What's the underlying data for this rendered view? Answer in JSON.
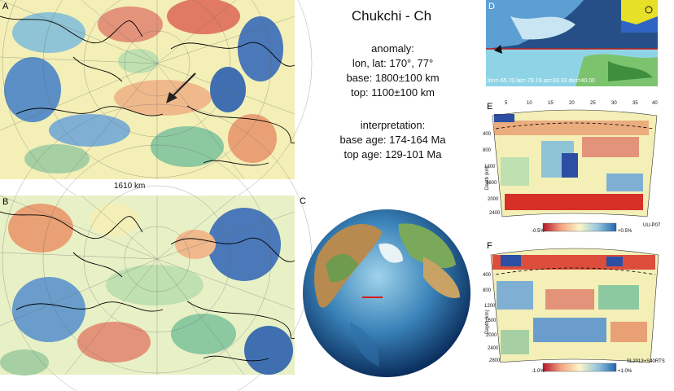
{
  "title": "Chukchi - Ch",
  "anomaly": {
    "heading": "anomaly:",
    "lonlat": "lon, lat: 170°, 77°",
    "base": "base: 1800±100 km",
    "top": "top: 1100±100 km"
  },
  "interpretation": {
    "heading": "interpretation:",
    "base_age": "base age: 174-164 Ma",
    "top_age": "top age: 129-101 Ma"
  },
  "panels": {
    "a": {
      "label": "A",
      "depth": "1610 km"
    },
    "b": {
      "label": "B"
    },
    "c": {
      "label": "C"
    },
    "d": {
      "label": "D",
      "coords": "lon=-55.70 lat=-79.19 az=33.33 dist=40.00"
    },
    "e": {
      "label": "E",
      "top_ticks": [
        "5",
        "10",
        "15",
        "20",
        "25",
        "30",
        "35",
        "40"
      ],
      "depth_ticks": [
        "400",
        "800",
        "1200",
        "1600",
        "2000",
        "2400"
      ],
      "ylabel": "Depth (km)",
      "cb_min": "-0.5%",
      "cb_max": "+0.5%",
      "model": "UU-P07"
    },
    "f": {
      "label": "F",
      "depth_ticks": [
        "400",
        "800",
        "1200",
        "1600",
        "2000",
        "2400",
        "2800"
      ],
      "ylabel": "Depth (km)",
      "cb_min": "-1.0%",
      "cb_max": "+1.0%",
      "model": "SL2013+S40RTS"
    }
  },
  "colors": {
    "red": "#d73027",
    "blue": "#2c4fa3",
    "cream": "#f3efb6",
    "green": "#9ccb9b"
  }
}
